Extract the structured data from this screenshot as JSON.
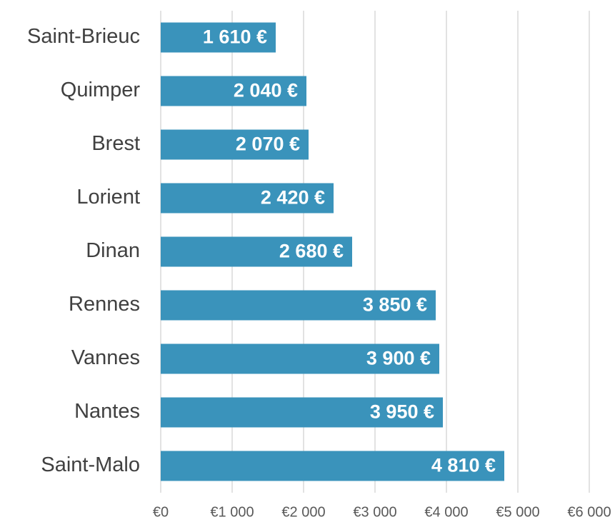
{
  "chart_data": {
    "type": "bar",
    "orientation": "horizontal",
    "categories": [
      "Saint-Brieuc",
      "Quimper",
      "Brest",
      "Lorient",
      "Dinan",
      "Rennes",
      "Vannes",
      "Nantes",
      "Saint-Malo"
    ],
    "values": [
      1610,
      2040,
      2070,
      2420,
      2680,
      3850,
      3900,
      3950,
      4810
    ],
    "value_labels": [
      "1 610 €",
      "2 040 €",
      "2 070 €",
      "2 420 €",
      "2 680 €",
      "3 850 €",
      "3 900 €",
      "3 950 €",
      "4 810 €"
    ],
    "color": "#3a93bb",
    "xlim": [
      0,
      6000
    ],
    "xticks": [
      {
        "value": 0,
        "label": "€0"
      },
      {
        "value": 1000,
        "label": "€1 000"
      },
      {
        "value": 2000,
        "label": "€2 000"
      },
      {
        "value": 3000,
        "label": "€3 000"
      },
      {
        "value": 4000,
        "label": "€4 000"
      },
      {
        "value": 5000,
        "label": "€5 000"
      },
      {
        "value": 6000,
        "label": "€6 000"
      }
    ],
    "grid": true
  }
}
